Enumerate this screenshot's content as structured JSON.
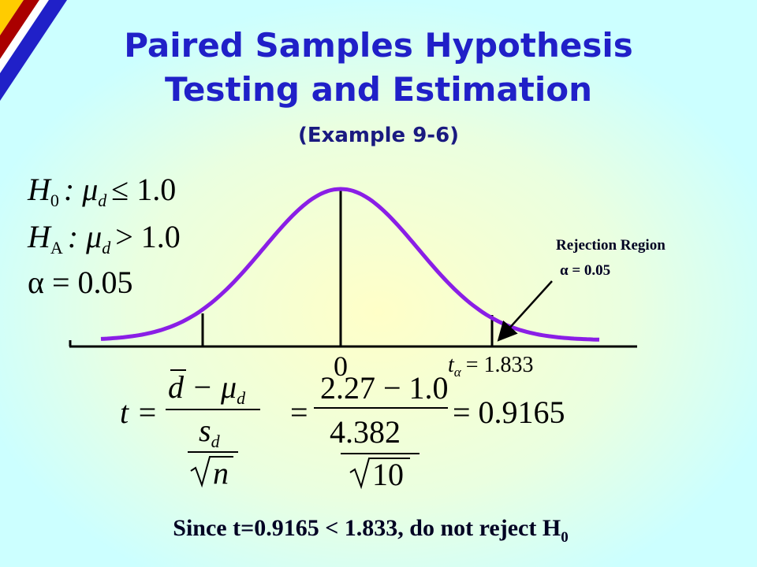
{
  "title": {
    "line1": "Paired Samples Hypothesis",
    "line2": "Testing and Estimation",
    "subtitle": "(Example 9-6)"
  },
  "hypotheses": {
    "h0": {
      "symbol": "H",
      "sub": "0",
      "param": ": μ",
      "param_sub": "d",
      "relation": "≤ 1.0"
    },
    "ha": {
      "symbol": "H",
      "sub": "A",
      "param": ": μ",
      "param_sub": "d",
      "relation": "> 1.0"
    },
    "alpha": "α = 0.05"
  },
  "curve_labels": {
    "center": "0",
    "critical": {
      "symbol": "t",
      "sub": "α",
      "value": "= 1.833"
    }
  },
  "rejection_region": {
    "label": "Rejection Region",
    "alpha": "α  = 0.05"
  },
  "statistic": {
    "lhs": "t =",
    "numerator": {
      "main": "d − μ",
      "sub": "d"
    },
    "denominator": {
      "main": "s",
      "sub": "d",
      "root": "n"
    },
    "equals": "=",
    "num_value": "2.27 − 1.0",
    "den_value": "4.382",
    "root_value": "10",
    "result": "= 0.9165"
  },
  "conclusion": {
    "text": "Since t=0.9165 < 1.833, do not reject H",
    "sub": "0"
  }
}
